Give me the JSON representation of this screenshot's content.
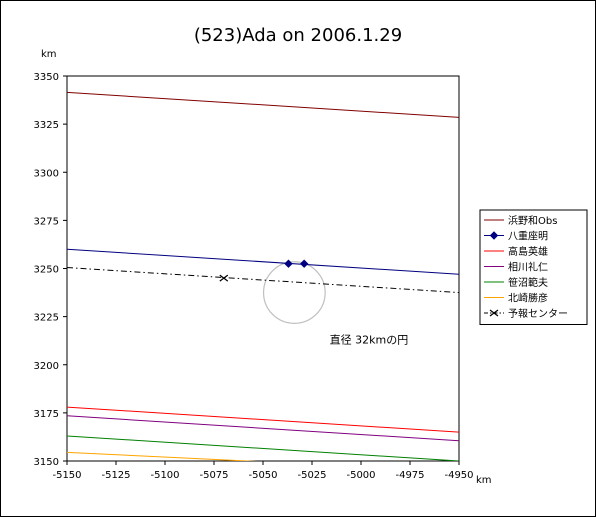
{
  "chart_data": {
    "type": "line",
    "title": "(523)Ada on 2006.1.29",
    "xlabel": "km",
    "ylabel": "km",
    "xlim": [
      -5150,
      -4950
    ],
    "ylim": [
      3150,
      3350
    ],
    "xticks": [
      -5150,
      -5125,
      -5100,
      -5075,
      -5050,
      -5025,
      -5000,
      -4975,
      -4950
    ],
    "yticks": [
      3150,
      3175,
      3200,
      3225,
      3250,
      3275,
      3300,
      3325,
      3350
    ],
    "grid": false,
    "legend_position": "right",
    "series": [
      {
        "name": "浜野和Obs",
        "color": "#800000",
        "style": "solid",
        "marker": "none",
        "points": [
          [
            -5150,
            3341.5
          ],
          [
            -4950,
            3328.5
          ]
        ]
      },
      {
        "name": "八重座明",
        "color": "#000080",
        "style": "solid",
        "marker": "diamond",
        "points": [
          [
            -5150,
            3260.0
          ],
          [
            -4950,
            3247.0
          ]
        ],
        "marked": [
          [
            -5037,
            3252.5
          ],
          [
            -5029,
            3252.5
          ]
        ]
      },
      {
        "name": "高島英雄",
        "color": "#ff0000",
        "style": "solid",
        "marker": "none",
        "points": [
          [
            -5150,
            3178.0
          ],
          [
            -4950,
            3165.0
          ]
        ]
      },
      {
        "name": "相川礼仁",
        "color": "#800080",
        "style": "solid",
        "marker": "none",
        "points": [
          [
            -5150,
            3173.5
          ],
          [
            -4950,
            3160.5
          ]
        ]
      },
      {
        "name": "笹沼範夫",
        "color": "#008000",
        "style": "solid",
        "marker": "none",
        "points": [
          [
            -5150,
            3163.0
          ],
          [
            -4950,
            3150.0
          ]
        ]
      },
      {
        "name": "北崎勝彦",
        "color": "#ffa500",
        "style": "solid",
        "marker": "none",
        "points": [
          [
            -5150,
            3154.5
          ],
          [
            -5048,
            3149.5
          ]
        ]
      },
      {
        "name": "予報センター",
        "color": "#000000",
        "style": "dashdot",
        "marker": "x",
        "points": [
          [
            -5150,
            3250.5
          ],
          [
            -4950,
            3237.5
          ]
        ],
        "marked": [
          [
            -5070,
            3245.0
          ]
        ]
      }
    ],
    "annotations": [
      {
        "text": "直径 32kmの円",
        "x": -5016,
        "y": 3211
      }
    ],
    "circle": {
      "cx": -5034,
      "cy": 3237.5,
      "diameter_km": 32,
      "color": "#c0c0c0"
    }
  }
}
